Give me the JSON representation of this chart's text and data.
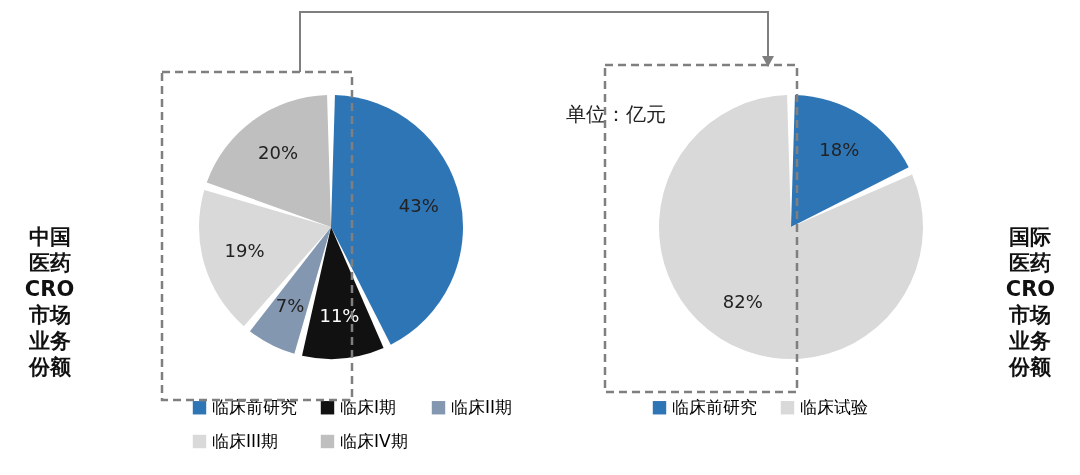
{
  "chart_data": [
    {
      "type": "pie",
      "title": "中国医药CRO市场业务份额",
      "categories": [
        "临床前研究",
        "临床I期",
        "临床II期",
        "临床III期",
        "临床IV期"
      ],
      "values": [
        43,
        11,
        7,
        19,
        20
      ],
      "colors": [
        "#2e75b6",
        "#111111",
        "#8497b0",
        "#d9d9d9",
        "#bfbfbf"
      ],
      "value_labels": [
        "43%",
        "11%",
        "7%",
        "19%",
        "20%"
      ],
      "legend": "bottom"
    },
    {
      "type": "pie",
      "title": "国际医药CRO市场业务份额",
      "categories": [
        "临床前研究",
        "临床试验"
      ],
      "values": [
        18,
        82
      ],
      "colors": [
        "#2e75b6",
        "#d9d9d9"
      ],
      "value_labels": [
        "18%",
        "82%"
      ],
      "legend": "bottom",
      "annotations": [
        "单位：亿元"
      ]
    }
  ]
}
